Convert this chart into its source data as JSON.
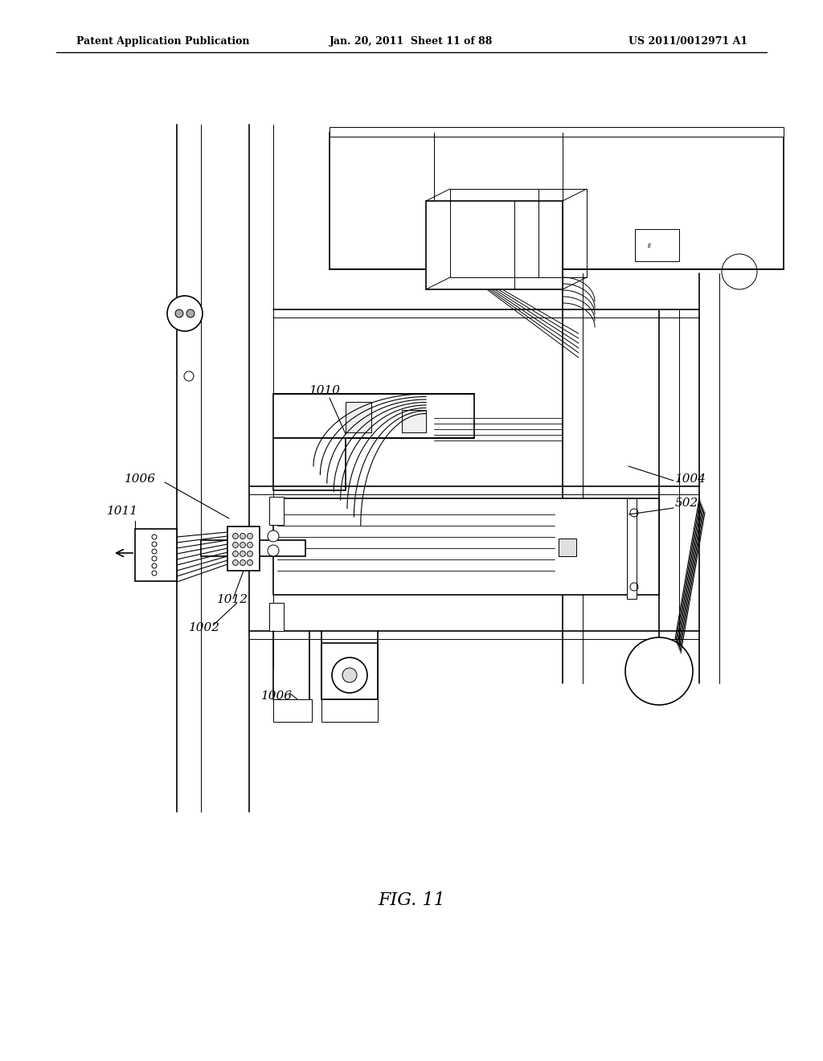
{
  "bg_color": "#ffffff",
  "line_color": "#000000",
  "header_left": "Patent Application Publication",
  "header_mid": "Jan. 20, 2011  Sheet 11 of 88",
  "header_right": "US 2011/0012971 A1",
  "fig_label": "FIG. 11"
}
